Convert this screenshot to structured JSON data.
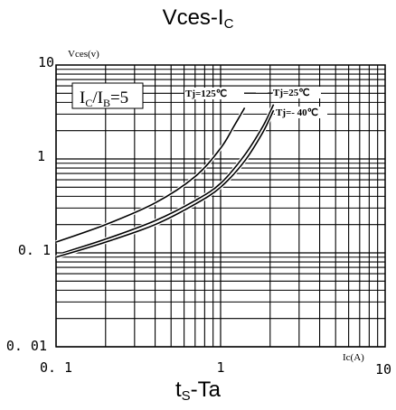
{
  "header": {
    "title_main": "Vces-I",
    "title_sub": "C"
  },
  "footer": {
    "label_prefix": "t",
    "label_sub": "S",
    "label_suffix": "-Ta"
  },
  "chart_data": {
    "type": "line",
    "log_x": true,
    "log_y": true,
    "xlim": [
      0.1,
      10
    ],
    "ylim": [
      0.01,
      10
    ],
    "x_tick_labels": [
      "0. 1",
      "1",
      "10"
    ],
    "y_tick_labels": [
      "10",
      "1",
      "0. 1",
      "0. 01"
    ],
    "xlabel": "Ic(A)",
    "ylabel": "Vces(v)",
    "condition_label": "IC/IB=5",
    "condition_main": "I",
    "condition_sub1": "C",
    "condition_mid": "/I",
    "condition_sub2": "B",
    "condition_tail": "=5",
    "grid": true,
    "series": [
      {
        "name": "Tj=125℃",
        "x": [
          0.1,
          0.2,
          0.4,
          0.7,
          1.0,
          1.2,
          1.4
        ],
        "y": [
          0.13,
          0.2,
          0.34,
          0.65,
          1.3,
          2.2,
          3.5
        ]
      },
      {
        "name": "Tj=25℃",
        "x": [
          0.11,
          0.2,
          0.4,
          0.7,
          1.0,
          1.4,
          1.8,
          2.1
        ],
        "y": [
          0.1,
          0.14,
          0.22,
          0.36,
          0.55,
          1.1,
          2.2,
          3.8
        ]
      },
      {
        "name": "Tj=- 40℃",
        "x": [
          0.1,
          0.2,
          0.4,
          0.7,
          1.0,
          1.4,
          1.8,
          2.1
        ],
        "y": [
          0.09,
          0.13,
          0.2,
          0.33,
          0.5,
          0.95,
          1.9,
          3.3
        ]
      }
    ]
  }
}
